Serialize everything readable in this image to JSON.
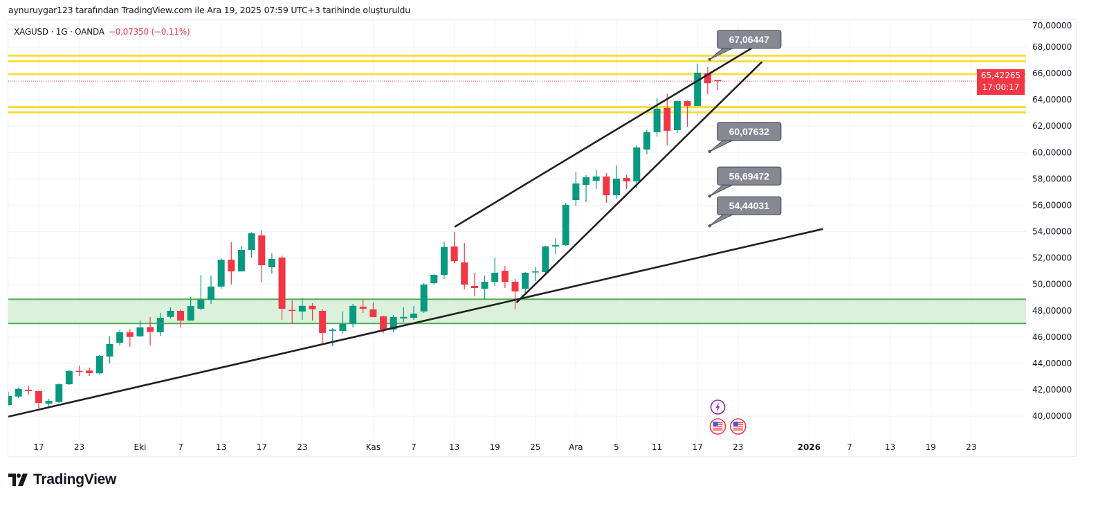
{
  "header": {
    "attribution": "aynuruygar123 tarafından TradingView.com ile Ara 19, 2025 07:59 UTC+3 tarihinde oluşturuldu"
  },
  "symbol_bar": {
    "symbol": "XAGUSD · 1G · OANDA",
    "change": "−0,07350 (−0,11%)"
  },
  "price_tag": {
    "price": "65,42265",
    "countdown": "17:00:17"
  },
  "footer": {
    "brand": "TradingView"
  },
  "colors": {
    "up": "#089981",
    "down": "#f23645",
    "level": "#f7dd3c",
    "zone_fill": "#d6efd6",
    "zone_line": "#4caf50",
    "trend": "#222222",
    "callout": "#868993"
  },
  "chart_data": {
    "type": "candlestick",
    "title": "XAGUSD · 1G · OANDA",
    "ylim": [
      39.0,
      70.5
    ],
    "y_ticks": [
      "40,00000",
      "42,00000",
      "44,00000",
      "46,00000",
      "48,00000",
      "50,00000",
      "52,00000",
      "54,00000",
      "56,00000",
      "58,00000",
      "60,00000",
      "62,00000",
      "64,00000",
      "66,00000",
      "68,00000",
      "70,00000"
    ],
    "y_tick_values": [
      40,
      42,
      44,
      46,
      48,
      50,
      52,
      54,
      56,
      58,
      60,
      62,
      64,
      66,
      68,
      70
    ],
    "x_ticks": [
      {
        "label": "17",
        "bar": 3
      },
      {
        "label": "23",
        "bar": 7
      },
      {
        "label": "Eki",
        "bar": 13
      },
      {
        "label": "7",
        "bar": 17
      },
      {
        "label": "13",
        "bar": 21
      },
      {
        "label": "17",
        "bar": 25
      },
      {
        "label": "23",
        "bar": 29
      },
      {
        "label": "Kas",
        "bar": 36
      },
      {
        "label": "7",
        "bar": 40
      },
      {
        "label": "13",
        "bar": 44
      },
      {
        "label": "19",
        "bar": 48
      },
      {
        "label": "25",
        "bar": 52
      },
      {
        "label": "Ara",
        "bar": 56
      },
      {
        "label": "5",
        "bar": 60
      },
      {
        "label": "11",
        "bar": 64
      },
      {
        "label": "17",
        "bar": 68
      },
      {
        "label": "23",
        "bar": 72
      },
      {
        "label": "2026",
        "bar": 79,
        "bold": true
      },
      {
        "label": "7",
        "bar": 83
      },
      {
        "label": "13",
        "bar": 87
      },
      {
        "label": "19",
        "bar": 91
      },
      {
        "label": "23",
        "bar": 95
      }
    ],
    "candles_ohlc": [
      [
        40.85,
        41.84,
        40.8,
        41.53
      ],
      [
        41.49,
        42.16,
        41.37,
        42.07
      ],
      [
        42.0,
        42.32,
        41.63,
        41.9
      ],
      [
        41.9,
        41.95,
        40.58,
        41.0
      ],
      [
        40.95,
        41.32,
        40.58,
        41.16
      ],
      [
        41.07,
        42.48,
        41.0,
        42.42
      ],
      [
        42.42,
        43.53,
        42.37,
        43.42
      ],
      [
        43.44,
        43.84,
        43.05,
        43.39
      ],
      [
        43.46,
        43.68,
        43.05,
        43.26
      ],
      [
        43.25,
        44.63,
        43.15,
        44.57
      ],
      [
        44.52,
        46.05,
        44.0,
        45.47
      ],
      [
        45.57,
        46.57,
        45.36,
        46.36
      ],
      [
        46.36,
        46.62,
        45.26,
        46.01
      ],
      [
        46.06,
        47.27,
        46.01,
        46.74
      ],
      [
        46.76,
        47.52,
        45.36,
        46.4
      ],
      [
        46.36,
        47.83,
        46.1,
        47.46
      ],
      [
        47.53,
        48.25,
        47.41,
        47.99
      ],
      [
        47.99,
        48.1,
        46.73,
        47.25
      ],
      [
        47.25,
        49.04,
        47.25,
        48.36
      ],
      [
        48.15,
        50.72,
        48.04,
        48.84
      ],
      [
        48.83,
        50.67,
        48.51,
        49.83
      ],
      [
        49.83,
        51.98,
        49.67,
        51.87
      ],
      [
        51.87,
        53.19,
        49.98,
        50.98
      ],
      [
        50.98,
        52.87,
        50.98,
        52.61
      ],
      [
        52.61,
        53.95,
        52.03,
        53.87
      ],
      [
        53.71,
        54.08,
        50.14,
        51.45
      ],
      [
        51.3,
        52.35,
        50.82,
        51.93
      ],
      [
        52.03,
        52.19,
        47.31,
        48.15
      ],
      [
        48.06,
        48.78,
        46.99,
        47.99
      ],
      [
        47.94,
        48.99,
        47.31,
        48.37
      ],
      [
        48.37,
        48.57,
        47.25,
        48.11
      ],
      [
        47.99,
        48.1,
        45.52,
        46.31
      ],
      [
        46.47,
        46.68,
        45.31,
        46.57
      ],
      [
        46.47,
        47.94,
        46.26,
        46.99
      ],
      [
        47.01,
        48.51,
        46.73,
        48.37
      ],
      [
        48.3,
        48.88,
        47.83,
        48.15
      ],
      [
        48.1,
        48.62,
        47.52,
        47.52
      ],
      [
        47.57,
        47.62,
        46.31,
        46.57
      ],
      [
        46.57,
        47.67,
        46.36,
        47.52
      ],
      [
        47.41,
        48.25,
        47.15,
        47.53
      ],
      [
        47.46,
        48.36,
        47.31,
        47.78
      ],
      [
        47.94,
        50.09,
        47.83,
        49.98
      ],
      [
        50.09,
        50.77,
        49.98,
        50.72
      ],
      [
        50.72,
        53.24,
        50.4,
        52.82
      ],
      [
        52.87,
        53.98,
        51.61,
        51.77
      ],
      [
        51.66,
        53.14,
        49.62,
        49.98
      ],
      [
        49.88,
        50.88,
        49.09,
        49.72
      ],
      [
        49.67,
        50.67,
        48.88,
        50.19
      ],
      [
        50.19,
        52.03,
        49.88,
        50.88
      ],
      [
        51.03,
        51.4,
        49.72,
        50.19
      ],
      [
        50.19,
        50.4,
        48.09,
        49.46
      ],
      [
        49.67,
        50.93,
        49.25,
        50.88
      ],
      [
        50.93,
        51.3,
        50.25,
        50.98
      ],
      [
        50.93,
        52.92,
        50.88,
        52.87
      ],
      [
        52.87,
        53.5,
        52.3,
        52.98
      ],
      [
        52.98,
        56.18,
        52.92,
        56.02
      ],
      [
        56.39,
        58.55,
        55.92,
        57.65
      ],
      [
        57.55,
        58.28,
        56.23,
        58.12
      ],
      [
        57.86,
        58.7,
        57.23,
        58.18
      ],
      [
        58.18,
        58.44,
        56.18,
        56.76
      ],
      [
        56.76,
        59.02,
        56.5,
        58.02
      ],
      [
        58.07,
        58.28,
        57.23,
        57.81
      ],
      [
        57.81,
        60.54,
        57.29,
        60.38
      ],
      [
        60.23,
        61.7,
        59.86,
        61.54
      ],
      [
        61.54,
        64.11,
        61.22,
        63.33
      ],
      [
        63.38,
        64.48,
        60.54,
        61.65
      ],
      [
        61.7,
        63.95,
        61.49,
        63.9
      ],
      [
        63.9,
        63.95,
        61.96,
        63.54
      ],
      [
        63.54,
        66.74,
        63.54,
        66.06
      ],
      [
        66.01,
        66.48,
        64.43,
        65.27
      ],
      [
        65.5,
        65.5,
        64.74,
        65.42
      ]
    ],
    "last_price": 65.42265,
    "horizontal_levels": [
      67.35,
      66.92,
      65.95,
      63.45,
      63.05
    ],
    "support_zone": [
      47.03,
      48.87
    ],
    "trendlines": [
      {
        "from": [
          -0.07,
          39.95
        ],
        "to": [
          80.3,
          54.19
        ]
      },
      {
        "from": [
          44.1,
          54.39
        ],
        "to": [
          73.5,
          67.99
        ]
      },
      {
        "from": [
          50.2,
          48.66
        ],
        "to": [
          74.3,
          66.84
        ]
      }
    ],
    "callouts": [
      {
        "label": "67,06447",
        "price": 67.06447,
        "bar": 69.2
      },
      {
        "label": "60,07632",
        "price": 60.07632,
        "bar": 69.2
      },
      {
        "label": "56,69472",
        "price": 56.69472,
        "bar": 69.2
      },
      {
        "label": "54,44031",
        "price": 54.44031,
        "bar": 69.2
      }
    ],
    "events": [
      {
        "type": "lightning",
        "bar": 70
      },
      {
        "type": "us-flag",
        "bar": 70
      },
      {
        "type": "us-flag",
        "bar": 72
      }
    ]
  }
}
